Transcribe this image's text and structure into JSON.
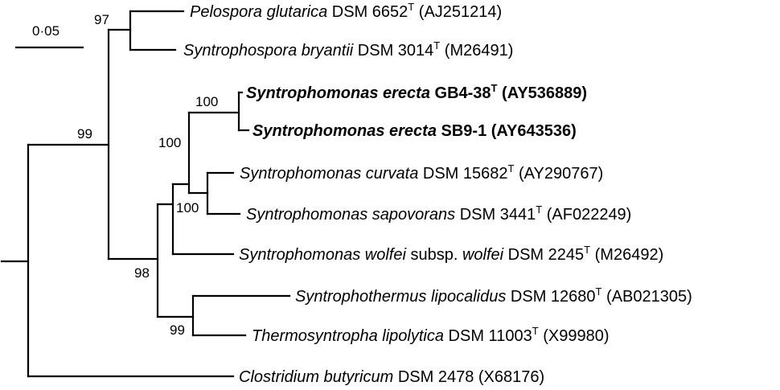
{
  "scale_bar": {
    "label": "0·05"
  },
  "taxa": [
    {
      "id": "pelospora",
      "parts": [
        {
          "t": "Pelospora glutarica",
          "i": true
        },
        {
          "t": " DSM 6652"
        },
        {
          "t": "T",
          "sup": true
        },
        {
          "t": " (AJ251214)"
        }
      ],
      "bold": false
    },
    {
      "id": "syntrophospora",
      "parts": [
        {
          "t": "Syntrophospora bryantii",
          "i": true
        },
        {
          "t": " DSM 3014"
        },
        {
          "t": "T",
          "sup": true
        },
        {
          "t": " (M26491)"
        }
      ],
      "bold": false
    },
    {
      "id": "erecta-gb4",
      "parts": [
        {
          "t": "Syntrophomonas erecta",
          "i": true
        },
        {
          "t": " GB4-38"
        },
        {
          "t": "T",
          "sup": true
        },
        {
          "t": " (AY536889)"
        }
      ],
      "bold": true
    },
    {
      "id": "erecta-sb9",
      "parts": [
        {
          "t": "Syntrophomonas erecta",
          "i": true
        },
        {
          "t": " SB9-1 (AY643536)"
        }
      ],
      "bold": true
    },
    {
      "id": "curvata",
      "parts": [
        {
          "t": "Syntrophomonas curvata",
          "i": true
        },
        {
          "t": " DSM 15682"
        },
        {
          "t": "T",
          "sup": true
        },
        {
          "t": " (AY290767)"
        }
      ],
      "bold": false
    },
    {
      "id": "sapovorans",
      "parts": [
        {
          "t": "Syntrophomonas sapovorans",
          "i": true
        },
        {
          "t": " DSM 3441"
        },
        {
          "t": "T",
          "sup": true
        },
        {
          "t": " (AF022249)"
        }
      ],
      "bold": false
    },
    {
      "id": "wolfei",
      "parts": [
        {
          "t": "Syntrophomonas wolfei",
          "i": true
        },
        {
          "t": " subsp. "
        },
        {
          "t": "wolfei",
          "i": true
        },
        {
          "t": " DSM 2245"
        },
        {
          "t": "T",
          "sup": true
        },
        {
          "t": " (M26492)"
        }
      ],
      "bold": false
    },
    {
      "id": "syntrophothermus",
      "parts": [
        {
          "t": "Syntrophothermus lipocalidus",
          "i": true
        },
        {
          "t": " DSM 12680"
        },
        {
          "t": "T",
          "sup": true
        },
        {
          "t": " (AB021305)"
        }
      ],
      "bold": false
    },
    {
      "id": "thermosyntropha",
      "parts": [
        {
          "t": "Thermosyntropha lipolytica",
          "i": true
        },
        {
          "t": " DSM 11003"
        },
        {
          "t": "T",
          "sup": true
        },
        {
          "t": " (X99980)"
        }
      ],
      "bold": false
    },
    {
      "id": "clostridium",
      "parts": [
        {
          "t": "Clostridium butyricum",
          "i": true
        },
        {
          "t": " DSM 2478 (X68176)"
        }
      ],
      "bold": false
    }
  ],
  "bootstrap": [
    {
      "id": "node-pelospora-syntrophospora",
      "value": "97"
    },
    {
      "id": "node-ingroup",
      "value": "99"
    },
    {
      "id": "node-erecta",
      "value": "100"
    },
    {
      "id": "node-erecta-curvata-sapovorans",
      "value": "100"
    },
    {
      "id": "node-curvata-sapovorans",
      "value": "100"
    },
    {
      "id": "node-syntrophomonas-thermo",
      "value": "98"
    },
    {
      "id": "node-thermo",
      "value": "99"
    }
  ]
}
